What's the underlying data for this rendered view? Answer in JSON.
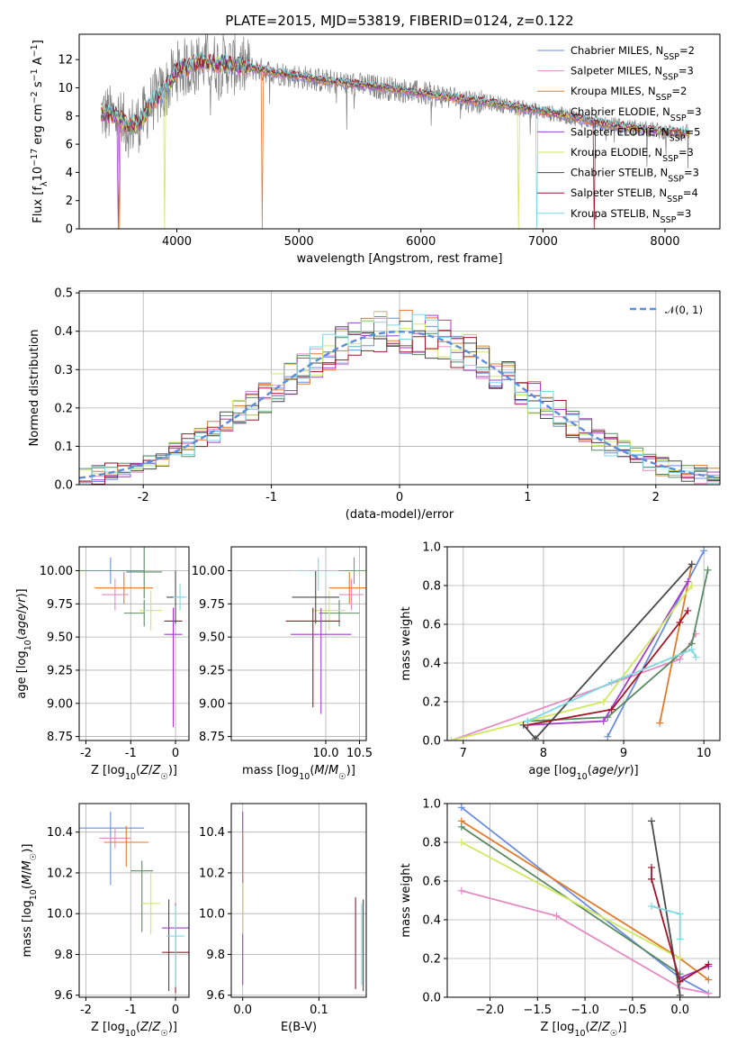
{
  "figure": {
    "title": "PLATE=2015, MJD=53819, FIBERID=0124, z=0.122"
  },
  "colors": {
    "Chabrier MILES": "#6b8de0",
    "Salpeter MILES": "#e58bc4",
    "Kroupa MILES": "#e37a2a",
    "Chabrier ELODIE": "#5a8a62",
    "Salpeter ELODIE": "#a43fcc",
    "Kroupa ELODIE": "#cfe860",
    "Chabrier STELIB": "#4a4a4a",
    "Salpeter STELIB": "#a31528",
    "Kroupa STELIB": "#7fd8e0"
  },
  "chart_data": [
    {
      "id": "spectrum",
      "type": "line",
      "title": "PLATE=2015, MJD=53819, FIBERID=0124, z=0.122",
      "xlabel": "wavelength [Angstrom, rest frame]",
      "ylabel": "Flux [f_λ 10^-17 erg cm^-2 s^-1 A^-1]",
      "xlim": [
        3200,
        8450
      ],
      "ylim": [
        0,
        13.8
      ],
      "xticks": [
        4000,
        5000,
        6000,
        7000,
        8000
      ],
      "yticks": [
        0,
        2,
        4,
        6,
        8,
        10,
        12
      ],
      "grid": false,
      "legend_position": "top-right",
      "legend": [
        {
          "name": "Chabrier MILES",
          "label": "Chabrier MILES, N",
          "sub": "SSP",
          "tail": "=2"
        },
        {
          "name": "Salpeter MILES",
          "label": "Salpeter MILES, N",
          "sub": "SSP",
          "tail": "=3"
        },
        {
          "name": "Kroupa MILES",
          "label": "Kroupa MILES, N",
          "sub": "SSP",
          "tail": "=2"
        },
        {
          "name": "Chabrier ELODIE",
          "label": "Chabrier ELODIE, N",
          "sub": "SSP",
          "tail": "=3"
        },
        {
          "name": "Salpeter ELODIE",
          "label": "Salpeter ELODIE, N",
          "sub": "SSP",
          "tail": "=5"
        },
        {
          "name": "Kroupa ELODIE",
          "label": "Kroupa ELODIE, N",
          "sub": "SSP",
          "tail": "=3"
        },
        {
          "name": "Chabrier STELIB",
          "label": "Chabrier STELIB, N",
          "sub": "SSP",
          "tail": "=3"
        },
        {
          "name": "Salpeter STELIB",
          "label": "Salpeter STELIB, N",
          "sub": "SSP",
          "tail": "=4"
        },
        {
          "name": "Kroupa STELIB",
          "label": "Kroupa STELIB, N",
          "sub": "SSP",
          "tail": "=3"
        }
      ],
      "continuum_x": [
        3380,
        3500,
        3600,
        3700,
        3800,
        3900,
        4000,
        4200,
        4400,
        4600,
        4800,
        5000,
        5200,
        5400,
        5600,
        5800,
        6000,
        6200,
        6400,
        6600,
        6800,
        7000,
        7200,
        7400,
        7600,
        7800,
        8000,
        8200
      ],
      "continuum_y": [
        8.2,
        8.0,
        7.2,
        7.6,
        9.0,
        9.8,
        11.2,
        11.8,
        11.7,
        11.4,
        11.1,
        10.8,
        10.5,
        10.3,
        10.1,
        9.9,
        9.6,
        9.4,
        9.1,
        8.9,
        8.6,
        8.3,
        8.0,
        7.6,
        7.3,
        7.1,
        6.9,
        6.8
      ]
    },
    {
      "id": "residuals",
      "type": "line",
      "xlabel": "(data-model)/error",
      "ylabel": "Normed distribution",
      "xlim": [
        -2.5,
        2.5
      ],
      "ylim": [
        0,
        0.505
      ],
      "xticks": [
        -2,
        -1,
        0,
        1,
        2
      ],
      "yticks": [
        0.0,
        0.1,
        0.2,
        0.3,
        0.4,
        0.5
      ],
      "grid": true,
      "legend_position": "top-right",
      "legend": [
        "𝒩(0, 1)"
      ],
      "reference_curve": {
        "name": "𝒩(0, 1)",
        "mean": 0,
        "sigma": 1,
        "style": "dashed"
      },
      "bin_width": 0.1
    },
    {
      "id": "age-vs-Z",
      "type": "scatter",
      "xlabel": "Z [log10(Z/Z☉)]",
      "ylabel": "age [log10(age/yr)]",
      "xlim": [
        -2.15,
        0.3
      ],
      "ylim": [
        8.72,
        10.18
      ],
      "xticks": [
        -2,
        -1,
        0
      ],
      "yticks": [
        8.75,
        9.0,
        9.25,
        9.5,
        9.75,
        10.0
      ],
      "grid": true,
      "points": [
        {
          "series": "Chabrier MILES",
          "x": -1.45,
          "xerr": [
            0.75,
            0.75
          ],
          "y": 10.0,
          "yerr": [
            0.1,
            0.1
          ]
        },
        {
          "series": "Kroupa MILES",
          "x": -1.15,
          "xerr": [
            0.65,
            0.65
          ],
          "y": 9.87,
          "yerr": [
            0.12,
            0.12
          ]
        },
        {
          "series": "Salpeter MILES",
          "x": -1.35,
          "xerr": [
            0.3,
            0.3
          ],
          "y": 9.82,
          "yerr": [
            0.12,
            0.12
          ]
        },
        {
          "series": "Chabrier ELODIE",
          "x": -0.7,
          "xerr": [
            0.4,
            0.4
          ],
          "y": 9.99,
          "yerr": [
            0.2,
            0.2
          ]
        },
        {
          "series": "Chabrier ELODIE",
          "x": -0.7,
          "xerr": [
            0.45,
            0.0
          ],
          "y": 9.68,
          "yerr": [
            0.1,
            0.1
          ]
        },
        {
          "series": "Kroupa ELODIE",
          "x": -0.55,
          "xerr": [
            0.25,
            0.25
          ],
          "y": 9.7,
          "yerr": [
            0.15,
            0.15
          ]
        },
        {
          "series": "Chabrier STELIB",
          "x": 0.0,
          "xerr": [
            0.2,
            0.2
          ],
          "y": 9.8,
          "yerr": [
            0.2,
            0.2
          ]
        },
        {
          "series": "Salpeter STELIB",
          "x": -0.05,
          "xerr": [
            0.2,
            0.2
          ],
          "y": 9.62,
          "yerr": [
            0.75,
            0.1
          ]
        },
        {
          "series": "Salpeter ELODIE",
          "x": -0.05,
          "xerr": [
            0.2,
            0.2
          ],
          "y": 9.52,
          "yerr": [
            0.7,
            0.2
          ]
        },
        {
          "series": "Kroupa STELIB",
          "x": 0.1,
          "xerr": [
            0.15,
            0.15
          ],
          "y": 9.8,
          "yerr": [
            0.1,
            0.1
          ]
        }
      ]
    },
    {
      "id": "age-vs-mass",
      "type": "scatter",
      "xlabel": "mass [log10(M/M☉)]",
      "ylabel": "",
      "xlim": [
        8.6,
        10.6
      ],
      "ylim": [
        8.72,
        10.18
      ],
      "xticks": [
        10.0,
        10.5
      ],
      "yticks": [
        8.75,
        9.0,
        9.25,
        9.5,
        9.75,
        10.0
      ],
      "grid": true,
      "points": [
        {
          "series": "Chabrier MILES",
          "x": 10.42,
          "xerr": [
            0.3,
            0.3
          ],
          "y": 10.0,
          "yerr": [
            0.1,
            0.1
          ]
        },
        {
          "series": "Kroupa MILES",
          "x": 10.35,
          "xerr": [
            0.3,
            0.3
          ],
          "y": 9.87,
          "yerr": [
            0.12,
            0.12
          ]
        },
        {
          "series": "Salpeter MILES",
          "x": 10.38,
          "xerr": [
            0.18,
            0.18
          ],
          "y": 9.82,
          "yerr": [
            0.12,
            0.12
          ]
        },
        {
          "series": "Chabrier ELODIE",
          "x": 10.2,
          "xerr": [
            0.3,
            0.3
          ],
          "y": 9.68,
          "yerr": [
            0.1,
            0.1
          ]
        },
        {
          "series": "Kroupa ELODIE",
          "x": 10.05,
          "xerr": [
            0.25,
            0.25
          ],
          "y": 9.7,
          "yerr": [
            0.15,
            0.15
          ]
        },
        {
          "series": "Chabrier STELIB",
          "x": 9.85,
          "xerr": [
            0.35,
            0.35
          ],
          "y": 9.8,
          "yerr": [
            0.2,
            0.2
          ]
        },
        {
          "series": "Salpeter STELIB",
          "x": 9.81,
          "xerr": [
            0.4,
            0.4
          ],
          "y": 9.62,
          "yerr": [
            0.65,
            0.1
          ]
        },
        {
          "series": "Salpeter ELODIE",
          "x": 9.93,
          "xerr": [
            0.45,
            0.45
          ],
          "y": 9.52,
          "yerr": [
            0.6,
            0.2
          ]
        },
        {
          "series": "Kroupa STELIB",
          "x": 9.89,
          "xerr": [
            0.3,
            0.3
          ],
          "y": 10.0,
          "yerr": [
            0.15,
            0.1
          ]
        }
      ]
    },
    {
      "id": "mass-weight-vs-age",
      "type": "line",
      "xlabel": "age [log10(age/yr)]",
      "ylabel": "mass weight",
      "xlim": [
        6.8,
        10.2
      ],
      "ylim": [
        0,
        1.0
      ],
      "xticks": [
        7,
        8,
        9,
        10
      ],
      "yticks": [
        0.0,
        0.2,
        0.4,
        0.6,
        0.8,
        1.0
      ],
      "grid": true,
      "series": [
        {
          "name": "Chabrier MILES",
          "x": [
            8.8,
            10.0
          ],
          "y": [
            0.02,
            0.98
          ]
        },
        {
          "name": "Salpeter MILES",
          "x": [
            6.85,
            9.7,
            9.9
          ],
          "y": [
            0.0,
            0.42,
            0.55
          ]
        },
        {
          "name": "Kroupa MILES",
          "x": [
            9.45,
            9.85
          ],
          "y": [
            0.09,
            0.91
          ]
        },
        {
          "name": "Chabrier ELODIE",
          "x": [
            7.8,
            8.8,
            9.85,
            10.05
          ],
          "y": [
            0.1,
            0.12,
            0.5,
            0.88
          ]
        },
        {
          "name": "Salpeter ELODIE",
          "x": [
            7.8,
            8.75,
            9.8
          ],
          "y": [
            0.08,
            0.1,
            0.82
          ]
        },
        {
          "name": "Kroupa ELODIE",
          "x": [
            6.85,
            8.75,
            9.85
          ],
          "y": [
            0.0,
            0.2,
            0.8
          ]
        },
        {
          "name": "Chabrier STELIB",
          "x": [
            7.75,
            7.9,
            9.85
          ],
          "y": [
            0.08,
            0.01,
            0.91
          ]
        },
        {
          "name": "Salpeter STELIB",
          "x": [
            7.8,
            8.85,
            9.7,
            9.8
          ],
          "y": [
            0.08,
            0.16,
            0.61,
            0.67
          ]
        },
        {
          "name": "Kroupa STELIB",
          "x": [
            7.8,
            8.85,
            9.85,
            9.9
          ],
          "y": [
            0.1,
            0.3,
            0.47,
            0.43
          ]
        }
      ]
    },
    {
      "id": "mass-vs-Z",
      "type": "scatter",
      "xlabel": "Z [log10(Z/Z☉)]",
      "ylabel": "mass [log10(M/M☉)]",
      "xlim": [
        -2.15,
        0.3
      ],
      "ylim": [
        9.59,
        10.54
      ],
      "xticks": [
        -2,
        -1,
        0
      ],
      "yticks": [
        9.6,
        9.8,
        10.0,
        10.2,
        10.4
      ],
      "grid": true,
      "points": [
        {
          "series": "Chabrier MILES",
          "x": -1.45,
          "xerr": [
            0.75,
            0.75
          ],
          "y": 10.42,
          "yerr": [
            0.28,
            0.08
          ]
        },
        {
          "series": "Salpeter MILES",
          "x": -1.35,
          "xerr": [
            0.35,
            0.35
          ],
          "y": 10.37,
          "yerr": [
            0.05,
            0.05
          ]
        },
        {
          "series": "Kroupa MILES",
          "x": -1.1,
          "xerr": [
            0.5,
            0.5
          ],
          "y": 10.35,
          "yerr": [
            0.12,
            0.08
          ]
        },
        {
          "series": "Chabrier ELODIE",
          "x": -0.75,
          "xerr": [
            0.25,
            0.25
          ],
          "y": 10.21,
          "yerr": [
            0.3,
            0.05
          ]
        },
        {
          "series": "Kroupa ELODIE",
          "x": -0.55,
          "xerr": [
            0.2,
            0.2
          ],
          "y": 10.05,
          "yerr": [
            0.15,
            0.15
          ]
        },
        {
          "series": "Chabrier STELIB",
          "x": -0.15,
          "xerr": [
            0.0,
            0.0
          ],
          "y": 9.85,
          "yerr": [
            0.23,
            0.22
          ]
        },
        {
          "series": "Salpeter ELODIE",
          "x": 0.0,
          "xerr": [
            0.3,
            0.3
          ],
          "y": 9.93,
          "yerr": [
            0.25,
            0.12
          ]
        },
        {
          "series": "Salpeter STELIB",
          "x": 0.0,
          "xerr": [
            0.3,
            0.3
          ],
          "y": 9.81,
          "yerr": [
            0.2,
            0.12
          ]
        },
        {
          "series": "Kroupa STELIB",
          "x": 0.0,
          "xerr": [
            0.2,
            0.2
          ],
          "y": 9.89,
          "yerr": [
            0.25,
            0.15
          ]
        }
      ]
    },
    {
      "id": "mass-vs-EBV",
      "type": "scatter",
      "xlabel": "E(B-V)",
      "ylabel": "",
      "xlim": [
        -0.015,
        0.162
      ],
      "ylim": [
        9.59,
        10.54
      ],
      "xticks": [
        0.0,
        0.1
      ],
      "yticks": [
        9.6,
        9.8,
        10.0,
        10.2,
        10.4
      ],
      "grid": true,
      "points": [
        {
          "series": "Salpeter ELODIE",
          "x": 0.0,
          "y": 10.25,
          "yerr": [
            0.6,
            0.25
          ]
        },
        {
          "series": "Kroupa MILES",
          "x": 0.0,
          "y": 10.3,
          "yerr": [
            0.3,
            0.1
          ]
        },
        {
          "series": "Kroupa ELODIE",
          "x": 0.0,
          "y": 10.05,
          "yerr": [
            0.15,
            0.1
          ]
        },
        {
          "series": "Salpeter STELIB",
          "x": 0.148,
          "y": 9.86,
          "yerr": [
            0.23,
            0.22
          ]
        },
        {
          "series": "Kroupa STELIB",
          "x": 0.156,
          "y": 9.85,
          "yerr": [
            0.2,
            0.2
          ]
        },
        {
          "series": "Chabrier STELIB",
          "x": 0.158,
          "y": 9.85,
          "yerr": [
            0.23,
            0.22
          ]
        }
      ]
    },
    {
      "id": "mass-weight-vs-Z",
      "type": "line",
      "xlabel": "Z [log10(Z/Z☉)]",
      "ylabel": "mass weight",
      "xlim": [
        -2.45,
        0.42
      ],
      "ylim": [
        0,
        1.0
      ],
      "xticks": [
        -2.0,
        -1.5,
        -1.0,
        -0.5,
        0.0
      ],
      "yticks": [
        0.0,
        0.2,
        0.4,
        0.6,
        0.8,
        1.0
      ],
      "grid": true,
      "series": [
        {
          "name": "Chabrier MILES",
          "x": [
            -2.3,
            0.0,
            0.3
          ],
          "y": [
            0.98,
            0.1,
            0.02
          ]
        },
        {
          "name": "Salpeter MILES",
          "x": [
            -2.3,
            -1.3,
            0.0,
            0.3
          ],
          "y": [
            0.55,
            0.42,
            0.05,
            0.02
          ]
        },
        {
          "name": "Kroupa MILES",
          "x": [
            -2.3,
            0.0,
            0.3
          ],
          "y": [
            0.91,
            0.2,
            0.09
          ]
        },
        {
          "name": "Chabrier ELODIE",
          "x": [
            -2.3,
            0.0
          ],
          "y": [
            0.88,
            0.12
          ]
        },
        {
          "name": "Salpeter ELODIE",
          "x": [
            0.0,
            0.3
          ],
          "y": [
            0.1,
            0.16
          ]
        },
        {
          "name": "Kroupa ELODIE",
          "x": [
            -2.3,
            0.0
          ],
          "y": [
            0.8,
            0.2
          ]
        },
        {
          "name": "Chabrier STELIB",
          "x": [
            -0.3,
            0.0
          ],
          "y": [
            0.91,
            0.01
          ]
        },
        {
          "name": "Salpeter STELIB",
          "x": [
            -0.3,
            -0.3,
            0.0,
            0.3
          ],
          "y": [
            0.67,
            0.61,
            0.08,
            0.17
          ]
        },
        {
          "name": "Kroupa STELIB",
          "x": [
            -0.3,
            0.0,
            0.0
          ],
          "y": [
            0.47,
            0.43,
            0.3
          ]
        }
      ]
    }
  ]
}
